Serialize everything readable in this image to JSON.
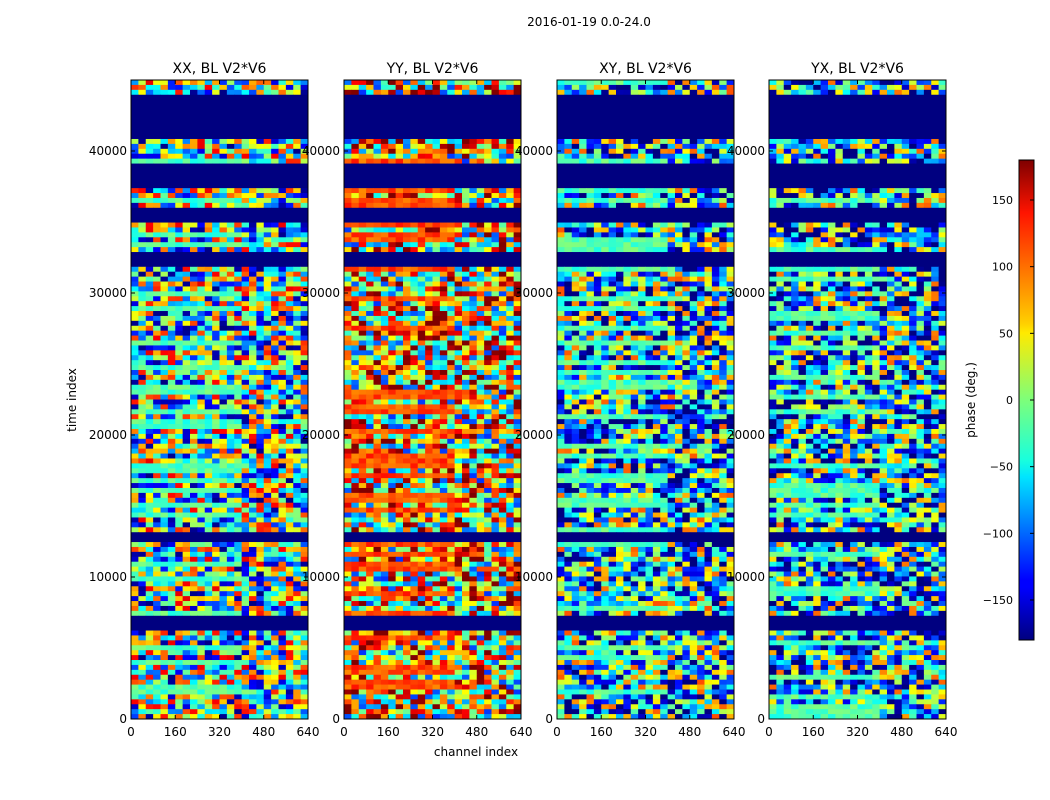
{
  "chart_data": {
    "type": "heatmap",
    "title": "2016-01-19 0.0-24.0",
    "xlabel": "channel index",
    "ylabel": "time index",
    "xlim": [
      0,
      640
    ],
    "ylim": [
      0,
      45000
    ],
    "xticks": [
      0,
      160,
      320,
      480,
      640
    ],
    "yticks": [
      0,
      10000,
      20000,
      30000,
      40000
    ],
    "xtick_labels": [
      "0",
      "160",
      "320",
      "480",
      "640"
    ],
    "ytick_labels": [
      "0",
      "10000",
      "20000",
      "30000",
      "40000"
    ],
    "panels": [
      {
        "name": "XX",
        "title": "XX, BL V2*V6"
      },
      {
        "name": "YY",
        "title": "YY, BL V2*V6"
      },
      {
        "name": "XY",
        "title": "XY, BL V2*V6"
      },
      {
        "name": "YX",
        "title": "YX, BL V2*V6"
      }
    ],
    "colorbar": {
      "label": "phase (deg.)",
      "colormap": "jet",
      "vmin": -180,
      "vmax": 180,
      "ticks": [
        -150,
        -100,
        -50,
        0,
        50,
        100,
        150
      ],
      "tick_labels": [
        "−150",
        "−100",
        "−50",
        "0",
        "50",
        "100",
        "150"
      ]
    },
    "flagged_time_ranges": [
      [
        44000,
        41000
      ],
      [
        39000,
        37500
      ],
      [
        36000,
        35000
      ],
      [
        33000,
        32000
      ],
      [
        13000,
        12500
      ],
      [
        7300,
        6200
      ]
    ]
  },
  "colors": {
    "flagged": "#000080",
    "axes": "#000000",
    "background": "#ffffff"
  }
}
